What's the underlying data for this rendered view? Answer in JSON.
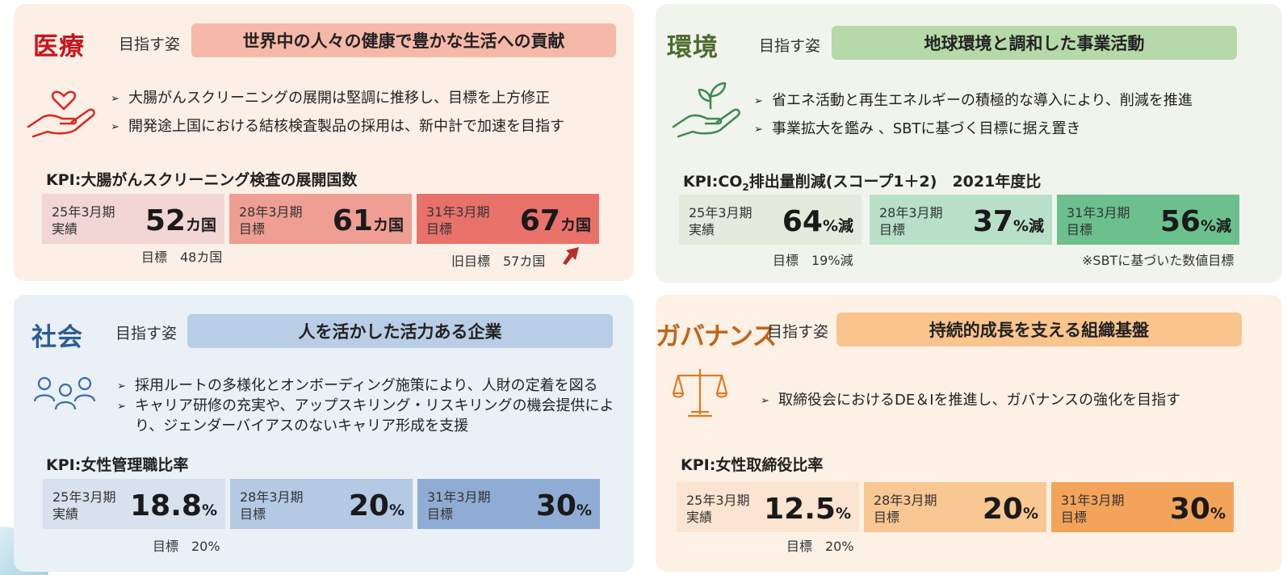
{
  "sections": {
    "medical": {
      "title": "医療",
      "aim_label": "目指す姿",
      "aim": "世界中の人々の健康で豊かな生活への貢献",
      "bullets": [
        "大腸がんスクリーニングの展開は堅調に推移し、目標を上方修正",
        "開発途上国における結核検査製品の採用は、新中計で加速を目指す"
      ],
      "kpi": "KPI:大腸がんスクリーニング検査の展開国数",
      "boxes": [
        {
          "period": "25年3月期",
          "kind": "実績",
          "value": "52",
          "unit": "カ国"
        },
        {
          "period": "28年3月期",
          "kind": "目標",
          "value": "61",
          "unit": "カ国"
        },
        {
          "period": "31年3月期",
          "kind": "目標",
          "value": "67",
          "unit": "カ国"
        }
      ],
      "note1": "目標　48カ国",
      "note2": "旧目標　57カ国",
      "colors": {
        "title": "#c8151b",
        "banner": "#f6b8a8",
        "box1": "#f1d6d4",
        "box2": "#ee9e93",
        "box3": "#e8726a"
      }
    },
    "environment": {
      "title": "環境",
      "aim_label": "目指す姿",
      "aim": "地球環境と調和した事業活動",
      "bullets": [
        "省エネ活動と再生エネルギーの積極的な導入により、削減を推進",
        "事業拡大を鑑み 、SBTに基づく目標に据え置き"
      ],
      "kpi_pre": "KPI:CO",
      "kpi_sub": "2",
      "kpi_post": "排出量削減(スコープ1＋2)　2021年度比",
      "boxes": [
        {
          "period": "25年3月期",
          "kind": "実績",
          "value": "64",
          "unit": "%減"
        },
        {
          "period": "28年3月期",
          "kind": "目標",
          "value": "37",
          "unit": "%減"
        },
        {
          "period": "31年3月期",
          "kind": "目標",
          "value": "56",
          "unit": "%減"
        }
      ],
      "note1": "目標　19%減",
      "note2": "※SBTに基づいた数値目標",
      "colors": {
        "title": "#4e6b2f",
        "banner": "#b5d9a8",
        "box1": "#e4ebdc",
        "box2": "#b7e0c6",
        "box3": "#6cc08e"
      }
    },
    "society": {
      "title": "社会",
      "aim_label": "目指す姿",
      "aim": "人を活かした活力ある企業",
      "bullets": [
        "採用ルートの多様化とオンボーディング施策により、人財の定着を図る",
        "キャリア研修の充実や、アップスキリング・リスキリングの機会提供により、ジェンダーバイアスのないキャリア形成を支援"
      ],
      "kpi": "KPI:女性管理職比率",
      "boxes": [
        {
          "period": "25年3月期",
          "kind": "実績",
          "value": "18.8",
          "unit": "%"
        },
        {
          "period": "28年3月期",
          "kind": "目標",
          "value": "20",
          "unit": "%"
        },
        {
          "period": "31年3月期",
          "kind": "目標",
          "value": "30",
          "unit": "%"
        }
      ],
      "note1": "目標　20%",
      "colors": {
        "title": "#2e5c95",
        "banner": "#b9cde6",
        "box1": "#d8e2ee",
        "box2": "#b4c9e4",
        "box3": "#8fadd4"
      }
    },
    "governance": {
      "title": "ガバナンス",
      "aim_label": "目指す姿",
      "aim": "持続的成長を支える組織基盤",
      "bullets": [
        "取締役会におけるDE＆Iを推進し、ガバナンスの強化を目指す"
      ],
      "kpi": "KPI:女性取締役比率",
      "boxes": [
        {
          "period": "25年3月期",
          "kind": "実績",
          "value": "12.5",
          "unit": "%"
        },
        {
          "period": "28年3月期",
          "kind": "目標",
          "value": "20",
          "unit": "%"
        },
        {
          "period": "31年3月期",
          "kind": "目標",
          "value": "30",
          "unit": "%"
        }
      ],
      "note1": "目標　20%",
      "colors": {
        "title": "#c0661b",
        "banner": "#f9c48e",
        "box1": "#fbe4d0",
        "box2": "#f9c792",
        "box3": "#f4a45a"
      }
    }
  },
  "icons": [
    "heart-hand-icon",
    "plant-hand-icon",
    "people-icon",
    "scales-icon",
    "up-arrow-icon"
  ]
}
